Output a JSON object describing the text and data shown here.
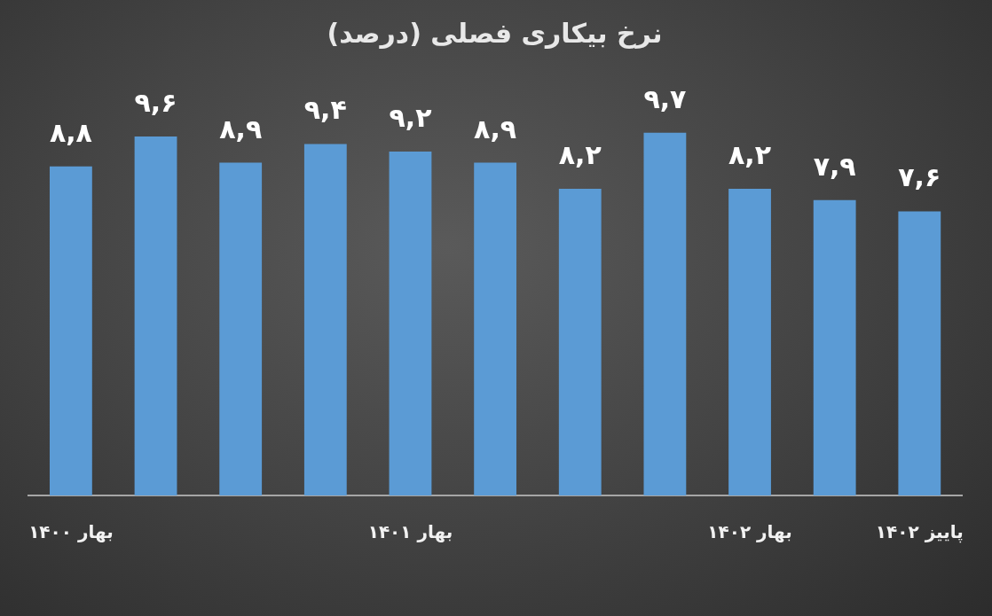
{
  "chart_data": {
    "type": "bar",
    "title": "نرخ بیکاری فصلی (درصد)",
    "categories": [
      "بهار ۱۴۰۰",
      null,
      null,
      null,
      "بهار ۱۴۰۱",
      null,
      null,
      null,
      "بهار ۱۴۰۲",
      null,
      "پاییز ۱۴۰۲"
    ],
    "values": [
      8.8,
      9.6,
      8.9,
      9.4,
      9.2,
      8.9,
      8.2,
      9.7,
      8.2,
      7.9,
      7.6
    ],
    "color": "#5b9bd5",
    "value_labels": [
      "۸,۸",
      "۹,۶",
      "۸,۹",
      "۹,۴",
      "۹,۲",
      "۸,۹",
      "۸,۲",
      "۹,۷",
      "۸,۲",
      "۷,۹",
      "۷,۶"
    ],
    "tick_labels": "x"
  }
}
